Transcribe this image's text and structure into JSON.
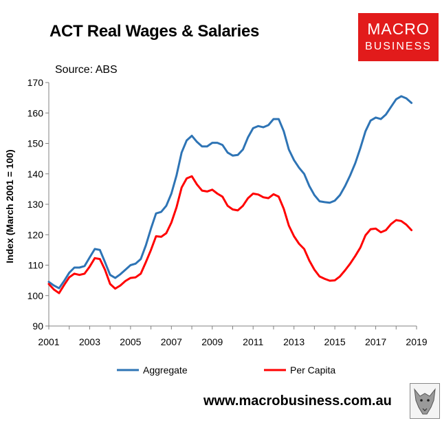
{
  "header": {
    "title": "ACT Real Wages & Salaries",
    "source": "Source: ABS"
  },
  "logo": {
    "line1": "MACRO",
    "line2": "BUSINESS",
    "color": "#e21b1b"
  },
  "footer": {
    "url": "www.macrobusiness.com.au"
  },
  "chart_data": {
    "type": "line",
    "title": "ACT Real Wages & Salaries",
    "ylabel": "Index (March 2001 = 100)",
    "xlabel": "",
    "xlim": [
      2001,
      2019
    ],
    "ylim": [
      90,
      170
    ],
    "x_ticks": [
      "2001",
      "2003",
      "2005",
      "2007",
      "2009",
      "2011",
      "2013",
      "2015",
      "2017",
      "2019"
    ],
    "y_ticks": [
      "90",
      "100",
      "110",
      "120",
      "130",
      "140",
      "150",
      "160",
      "170"
    ],
    "grid": false,
    "legend_position": "bottom",
    "x": [
      2001.0,
      2001.25,
      2001.5,
      2001.75,
      2002.0,
      2002.25,
      2002.5,
      2002.75,
      2003.0,
      2003.25,
      2003.5,
      2003.75,
      2004.0,
      2004.25,
      2004.5,
      2004.75,
      2005.0,
      2005.25,
      2005.5,
      2005.75,
      2006.0,
      2006.25,
      2006.5,
      2006.75,
      2007.0,
      2007.25,
      2007.5,
      2007.75,
      2008.0,
      2008.25,
      2008.5,
      2008.75,
      2009.0,
      2009.25,
      2009.5,
      2009.75,
      2010.0,
      2010.25,
      2010.5,
      2010.75,
      2011.0,
      2011.25,
      2011.5,
      2011.75,
      2012.0,
      2012.25,
      2012.5,
      2012.75,
      2013.0,
      2013.25,
      2013.5,
      2013.75,
      2014.0,
      2014.25,
      2014.5,
      2014.75,
      2015.0,
      2015.25,
      2015.5,
      2015.75,
      2016.0,
      2016.25,
      2016.5,
      2016.75,
      2017.0,
      2017.25,
      2017.5,
      2017.75,
      2018.0,
      2018.25,
      2018.5,
      2018.75
    ],
    "series": [
      {
        "name": "Aggregate",
        "color": "#2e74b5",
        "values": [
          104.5,
          103.3,
          102.4,
          104.8,
          107.5,
          109.2,
          109.2,
          109.7,
          112.5,
          115.3,
          115.0,
          111.0,
          106.8,
          105.8,
          107.0,
          108.5,
          110.0,
          110.5,
          112.0,
          116.5,
          122.0,
          127.0,
          127.5,
          129.5,
          133.5,
          139.5,
          147.0,
          151.0,
          152.5,
          150.5,
          149.0,
          149.0,
          150.2,
          150.2,
          149.5,
          147.0,
          146.0,
          146.2,
          148.0,
          152.0,
          155.0,
          155.7,
          155.3,
          156.0,
          158.0,
          158.0,
          154.0,
          148.0,
          144.5,
          142.0,
          140.0,
          136.0,
          133.0,
          131.0,
          130.7,
          130.5,
          131.2,
          133.0,
          136.0,
          139.5,
          143.5,
          148.5,
          154.0,
          157.5,
          158.5,
          158.0,
          159.5,
          162.0,
          164.5,
          165.5,
          164.8,
          163.3
        ]
      },
      {
        "name": "Per Capita",
        "color": "#ff0000",
        "values": [
          103.8,
          102.0,
          100.8,
          103.5,
          106.0,
          107.2,
          106.8,
          107.2,
          109.5,
          112.3,
          112.0,
          108.5,
          103.8,
          102.3,
          103.3,
          104.8,
          105.8,
          106.0,
          107.2,
          111.0,
          115.0,
          119.5,
          119.3,
          120.5,
          124.0,
          129.0,
          135.5,
          138.5,
          139.2,
          136.5,
          134.5,
          134.2,
          134.8,
          133.5,
          132.5,
          129.5,
          128.3,
          128.0,
          129.5,
          132.0,
          133.5,
          133.2,
          132.3,
          132.0,
          133.3,
          132.5,
          128.5,
          123.0,
          119.5,
          117.0,
          115.3,
          111.5,
          108.5,
          106.3,
          105.5,
          104.9,
          105.0,
          106.3,
          108.3,
          110.5,
          113.0,
          115.8,
          119.8,
          121.8,
          122.0,
          120.8,
          121.5,
          123.5,
          124.8,
          124.5,
          123.3,
          121.5
        ]
      }
    ]
  }
}
